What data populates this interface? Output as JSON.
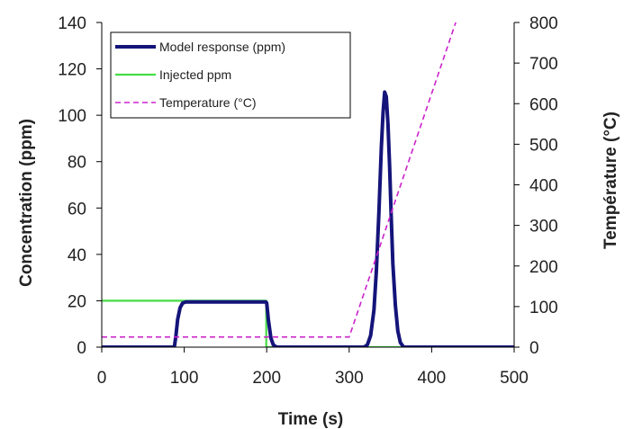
{
  "chart_data": {
    "type": "line",
    "title": "",
    "xlabel": "Time (s)",
    "ylabel": "Concentration (ppm)",
    "y2label": "Température (°C)",
    "xlim": [
      0,
      500
    ],
    "ylim": [
      0,
      140
    ],
    "y2lim": [
      0,
      800
    ],
    "xticks": [
      "0",
      "100",
      "200",
      "300",
      "400",
      "500"
    ],
    "yticks": [
      "0",
      "20",
      "40",
      "60",
      "80",
      "100",
      "120",
      "140"
    ],
    "y2ticks": [
      "0",
      "100",
      "200",
      "300",
      "400",
      "500",
      "600",
      "700",
      "800"
    ],
    "grid": false,
    "legend_position": "top-left",
    "series": [
      {
        "name": "Model response (ppm)",
        "axis": "left",
        "color": "#14147a",
        "style": "solid-thick",
        "points": [
          [
            0,
            0
          ],
          [
            88,
            0
          ],
          [
            90,
            5
          ],
          [
            92,
            12
          ],
          [
            95,
            17
          ],
          [
            98,
            19
          ],
          [
            102,
            19.5
          ],
          [
            150,
            19.5
          ],
          [
            199,
            19.5
          ],
          [
            200,
            19
          ],
          [
            202,
            12
          ],
          [
            205,
            4
          ],
          [
            208,
            1
          ],
          [
            212,
            0
          ],
          [
            300,
            0
          ],
          [
            318,
            0
          ],
          [
            322,
            1
          ],
          [
            326,
            5
          ],
          [
            330,
            16
          ],
          [
            333,
            33
          ],
          [
            336,
            58
          ],
          [
            339,
            86
          ],
          [
            341,
            101
          ],
          [
            343,
            110
          ],
          [
            345,
            108
          ],
          [
            347,
            96
          ],
          [
            349,
            78
          ],
          [
            351,
            56
          ],
          [
            353,
            36
          ],
          [
            356,
            18
          ],
          [
            359,
            7
          ],
          [
            362,
            2
          ],
          [
            366,
            0
          ],
          [
            500,
            0
          ]
        ]
      },
      {
        "name": "Injected ppm",
        "axis": "left",
        "color": "#44dd44",
        "style": "solid",
        "points": [
          [
            0,
            20
          ],
          [
            199.5,
            20
          ],
          [
            199.5,
            0
          ],
          [
            500,
            0
          ]
        ]
      },
      {
        "name": "Temperature (°C)",
        "axis": "right",
        "color": "#cc22cc",
        "style": "dashed",
        "points": [
          [
            0,
            25
          ],
          [
            300,
            25
          ],
          [
            430,
            805
          ]
        ]
      }
    ]
  }
}
